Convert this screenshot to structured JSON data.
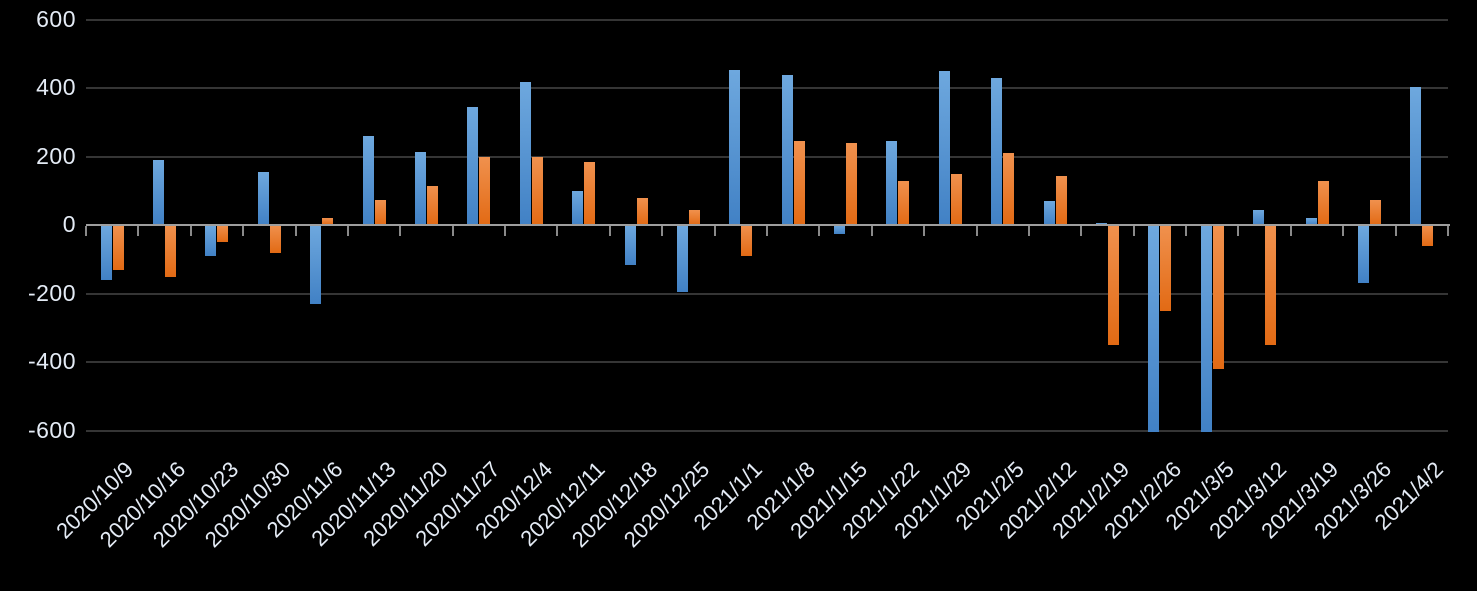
{
  "chart_data": {
    "type": "bar",
    "title": "",
    "subtitle": "",
    "legend": "none",
    "grid": true,
    "background_color": "#000000",
    "gridline_color": "#353535",
    "axis_line_color": "#9e9e9e",
    "tick_color": "#8a8a8a",
    "label_color": "#e4ebf5",
    "categories": [
      "2020/10/9",
      "2020/10/16",
      "2020/10/23",
      "2020/10/30",
      "2020/11/6",
      "2020/11/13",
      "2020/11/20",
      "2020/11/27",
      "2020/12/4",
      "2020/12/11",
      "2020/12/18",
      "2020/12/25",
      "2021/1/1",
      "2021/1/8",
      "2021/1/15",
      "2021/1/22",
      "2021/1/29",
      "2021/2/5",
      "2021/2/12",
      "2021/2/19",
      "2021/2/26",
      "2021/3/5",
      "2021/3/12",
      "2021/3/19",
      "2021/3/26",
      "2021/4/2"
    ],
    "series": [
      {
        "name": "series-blue",
        "color_top": "#6ea8de",
        "color_bottom": "#4181c5",
        "values": [
          -160,
          190,
          -90,
          155,
          -230,
          260,
          215,
          345,
          420,
          100,
          -115,
          -195,
          455,
          440,
          -25,
          245,
          450,
          430,
          70,
          5,
          -605,
          -605,
          45,
          20,
          -170,
          405
        ]
      },
      {
        "name": "series-orange",
        "color_top": "#f0914e",
        "color_bottom": "#e26a14",
        "values": [
          -130,
          -150,
          -50,
          -80,
          20,
          75,
          115,
          200,
          200,
          185,
          80,
          45,
          -90,
          245,
          240,
          130,
          150,
          210,
          145,
          -350,
          -250,
          -420,
          -350,
          130,
          75,
          -60
        ]
      }
    ],
    "y_axis": {
      "min": -600,
      "max": 600,
      "step": 200,
      "tick_labels": [
        "600",
        "400",
        "200",
        "0",
        "-200",
        "-400",
        "-600"
      ]
    },
    "x_axis": {
      "label_rotation_deg": -45
    }
  }
}
